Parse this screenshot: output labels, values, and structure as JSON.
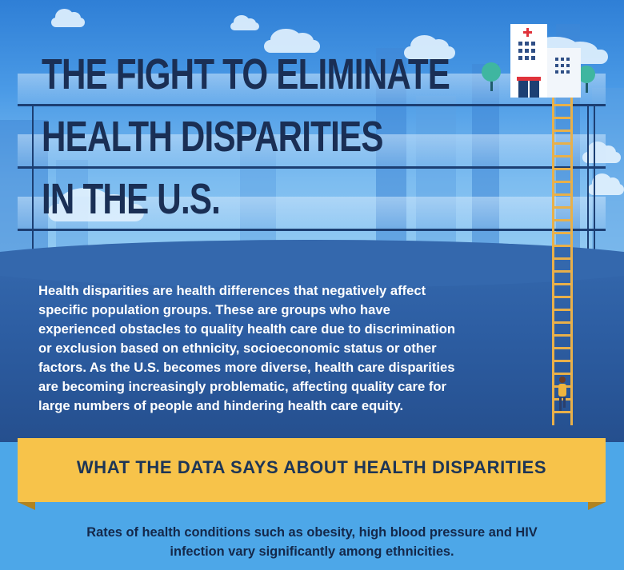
{
  "header": {
    "title_lines": [
      "THE FIGHT TO ELIMINATE",
      "HEALTH DISPARITIES",
      "IN THE U.S."
    ]
  },
  "intro": {
    "lines": [
      "Health disparities are health differences that negatively affect",
      "specific population groups. These are groups who have",
      "experienced obstacles to quality health care due to discrimination",
      "or exclusion based on ethnicity, socioeconomic status or other",
      "factors. As the U.S. becomes more diverse, health care disparities",
      "are becoming increasingly problematic, affecting quality care for",
      "large numbers of people and hindering health care equity."
    ]
  },
  "banner": {
    "label": "WHAT THE DATA SAYS ABOUT HEALTH DISPARITIES"
  },
  "section": {
    "lines": [
      "Rates of health conditions such as obesity, high blood pressure and HIV",
      "infection vary significantly among ethnicities."
    ]
  },
  "illustration": {
    "icons": [
      "hospital-icon",
      "tree-icon",
      "ladder-icon",
      "person-icon",
      "cloud-icon"
    ],
    "colors": {
      "sky": "#4a9ae6",
      "ground": "#2d5ea3",
      "banner": "#f7c34a",
      "ladder": "#e8b04a",
      "title": "#1a2f55",
      "hospital_cross": "#e0333b"
    }
  }
}
